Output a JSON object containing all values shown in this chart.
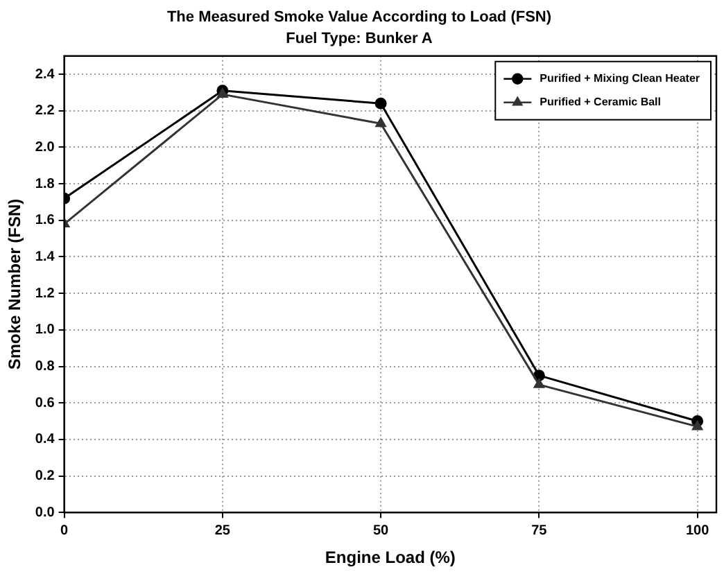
{
  "chart_data": {
    "type": "line",
    "title": "The Measured Smoke Value According to Load (FSN)",
    "subtitle": "Fuel Type: Bunker A",
    "xlabel": "Engine Load (%)",
    "ylabel": "Smoke Number (FSN)",
    "x": [
      0,
      25,
      50,
      75,
      100
    ],
    "xlim": [
      0,
      103
    ],
    "xticks": [
      0,
      25,
      50,
      75,
      100
    ],
    "ylim": [
      0,
      2.5
    ],
    "yticks": [
      {
        "value": 0,
        "label": "0.0"
      },
      {
        "value": 0.2,
        "label": "0.2"
      },
      {
        "value": 0.4,
        "label": "0.4"
      },
      {
        "value": 0.6,
        "label": "0.6"
      },
      {
        "value": 0.8,
        "label": "0.8"
      },
      {
        "value": 1,
        "label": "1.0"
      },
      {
        "value": 1.2,
        "label": "1.2"
      },
      {
        "value": 1.4,
        "label": "1.4"
      },
      {
        "value": 1.6,
        "label": "1.6"
      },
      {
        "value": 1.8,
        "label": "1.8"
      },
      {
        "value": 2,
        "label": "2.0"
      },
      {
        "value": 2.2,
        "label": "2.2"
      },
      {
        "value": 2.4,
        "label": "2.4"
      }
    ],
    "grid": true,
    "legend": "top right",
    "line_style": "solid",
    "series": [
      {
        "name": "Purified + Mixing Clean Heater",
        "color": "#000000",
        "marker": "circle",
        "values": [
          1.72,
          2.31,
          2.24,
          0.75,
          0.5
        ]
      },
      {
        "name": "Purified + Ceramic Ball",
        "color": "#333333",
        "marker": "triangle",
        "values": [
          1.58,
          2.29,
          2.13,
          0.7,
          0.47
        ]
      }
    ]
  }
}
